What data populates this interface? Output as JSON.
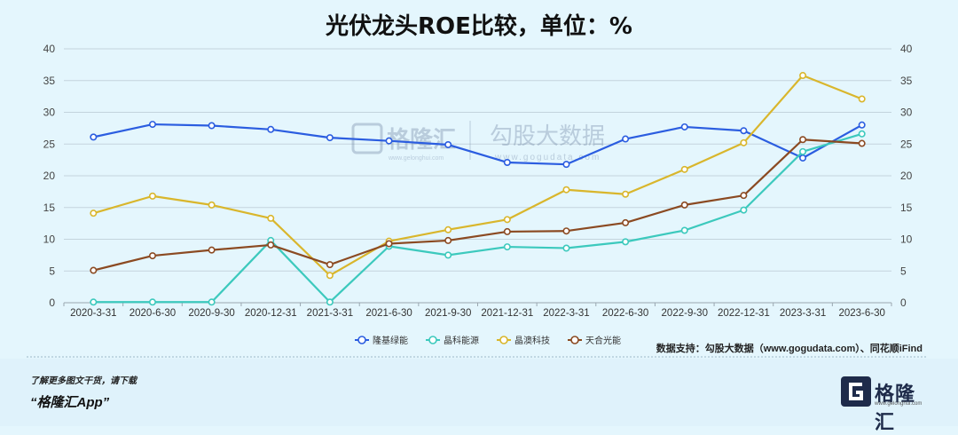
{
  "chart_data": {
    "type": "line",
    "title": "光伏龙头ROE比较，单位：%",
    "categories": [
      "2020-3-31",
      "2020-6-30",
      "2020-9-30",
      "2020-12-31",
      "2021-3-31",
      "2021-6-30",
      "2021-9-30",
      "2021-12-31",
      "2022-3-31",
      "2022-6-30",
      "2022-9-30",
      "2022-12-31",
      "2023-3-31",
      "2023-6-30"
    ],
    "ylim": [
      0,
      40
    ],
    "yticks": [
      0,
      5,
      10,
      15,
      20,
      25,
      30,
      35,
      40
    ],
    "grid": true,
    "legend_position": "bottom-center",
    "series": [
      {
        "name": "隆基绿能",
        "color": "#2b5de0",
        "values": [
          26.1,
          28.1,
          27.9,
          27.3,
          26.0,
          25.5,
          24.9,
          22.1,
          21.8,
          25.8,
          27.7,
          27.1,
          22.8,
          28.0
        ]
      },
      {
        "name": "晶科能源",
        "color": "#3cc9bd",
        "values": [
          0.1,
          0.1,
          0.1,
          9.8,
          0.1,
          8.9,
          7.5,
          8.8,
          8.6,
          9.6,
          11.4,
          14.6,
          23.8,
          26.6
        ]
      },
      {
        "name": "晶澳科技",
        "color": "#d9b62c",
        "values": [
          14.1,
          16.8,
          15.4,
          13.3,
          4.3,
          9.7,
          11.5,
          13.1,
          17.8,
          17.1,
          21.0,
          25.2,
          35.8,
          32.1
        ]
      },
      {
        "name": "天合光能",
        "color": "#8b4a22",
        "values": [
          5.1,
          7.4,
          8.3,
          9.1,
          6.0,
          9.3,
          9.8,
          11.2,
          11.3,
          12.6,
          15.4,
          16.9,
          25.7,
          25.1
        ]
      }
    ],
    "source_note": "数据支持：勾股大数据（www.gogudata.com）、同花顺iFind"
  },
  "watermark": {
    "brand": "格隆汇",
    "domain1": "www.gelonghui.com",
    "partner": "勾股大数据",
    "domain2": "www.gogudata.com"
  },
  "footer": {
    "line1": "了解更多图文干货，请下载",
    "line2": "“格隆汇App”",
    "brand": "格隆汇",
    "brand_sub": "www.gelonghui.com"
  }
}
